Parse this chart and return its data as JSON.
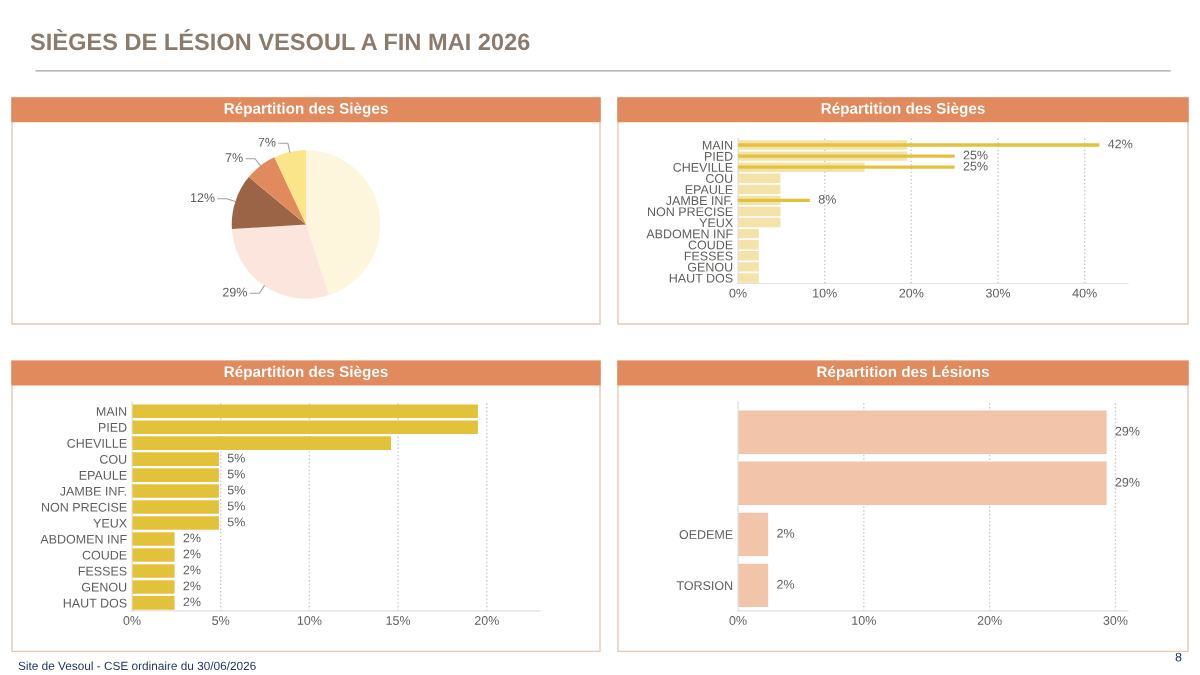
{
  "chart_data": [
    {
      "type": "pie",
      "title": "Répartition des Sièges",
      "annotations": [
        "SIÈGES DE LÉSION VESOUL A FIN MAI 2026",
        "Site de Vesoul - CSE ordinaire du 30/06/2026",
        "8"
      ],
      "categories": [
        null,
        null,
        null,
        null,
        null
      ],
      "values": [
        45,
        29,
        12,
        7,
        7
      ],
      "value_labels": [
        null,
        "29%",
        "12%",
        "7%",
        "7%"
      ],
      "colors": [
        "#fdf6dc",
        "#fbe5dc",
        "#9b6446",
        "#e08a5e",
        "#fbe58a"
      ]
    },
    {
      "type": "bar",
      "orientation": "horizontal",
      "title": "Répartition des Sièges",
      "categories": [
        "MAIN",
        "PIED",
        "CHEVILLE",
        "COU",
        "EPAULE",
        "JAMBE INF.",
        "NON PRECISE",
        "YEUX",
        "ABDOMEN INF",
        "COUDE",
        "FESSES",
        "GENOU",
        "HAUT DOS"
      ],
      "series": [
        {
          "color": "#e2c23a",
          "values": [
            19.5,
            19.5,
            14.6,
            4.9,
            4.9,
            4.9,
            4.9,
            4.9,
            2.4,
            2.4,
            2.4,
            2.4,
            2.4
          ],
          "value_labels": [
            null,
            null,
            null,
            "5%",
            "5%",
            "5%",
            "5%",
            "5%",
            "2%",
            "2%",
            "2%",
            "2%",
            "2%"
          ]
        }
      ],
      "xlim": [
        0,
        23
      ],
      "xticks": [
        {
          "value": 0,
          "label": "0%"
        },
        {
          "value": 5,
          "label": "5%"
        },
        {
          "value": 10,
          "label": "10%"
        },
        {
          "value": 15,
          "label": "15%"
        },
        {
          "value": 20,
          "label": "20%"
        }
      ],
      "grid": "x"
    },
    {
      "type": "bar",
      "orientation": "horizontal",
      "title": "Répartition des Sièges",
      "categories": [
        "MAIN",
        "PIED",
        "CHEVILLE",
        "COU",
        "EPAULE",
        "JAMBE INF.",
        "NON PRECISE",
        "YEUX",
        "ABDOMEN INF",
        "COUDE",
        "FESSES",
        "GENOU",
        "HAUT DOS"
      ],
      "series": [
        {
          "color": "#f3e3a8",
          "values": [
            19.5,
            19.5,
            14.6,
            4.9,
            4.9,
            4.9,
            4.9,
            4.9,
            2.4,
            2.4,
            2.4,
            2.4,
            2.4
          ]
        },
        {
          "color": "#e2c23a",
          "values": [
            41.7,
            25,
            25,
            null,
            null,
            8.3,
            null,
            null,
            null,
            null,
            null,
            null,
            null
          ],
          "value_labels": [
            "42%",
            "25%",
            "25%",
            null,
            null,
            "8%",
            null,
            null,
            null,
            null,
            null,
            null,
            null
          ]
        }
      ],
      "xlim": [
        0,
        45
      ],
      "xticks": [
        {
          "value": 0,
          "label": "0%"
        },
        {
          "value": 10,
          "label": "10%"
        },
        {
          "value": 20,
          "label": "20%"
        },
        {
          "value": 30,
          "label": "30%"
        },
        {
          "value": 40,
          "label": "40%"
        }
      ],
      "grid": "x"
    },
    {
      "type": "bar",
      "orientation": "horizontal",
      "title": "Répartition des Lésions",
      "categories": [
        null,
        null,
        "OEDEME",
        "TORSION"
      ],
      "series": [
        {
          "color": "#f2c4aa",
          "values": [
            29.3,
            29.3,
            2.4,
            2.4
          ],
          "value_labels": [
            "29%",
            "29%",
            "2%",
            "2%"
          ]
        }
      ],
      "xlim": [
        0,
        31
      ],
      "xticks": [
        {
          "value": 0,
          "label": "0%"
        },
        {
          "value": 10,
          "label": "10%"
        },
        {
          "value": 20,
          "label": "20%"
        },
        {
          "value": 30,
          "label": "30%"
        }
      ],
      "grid": "x"
    }
  ]
}
